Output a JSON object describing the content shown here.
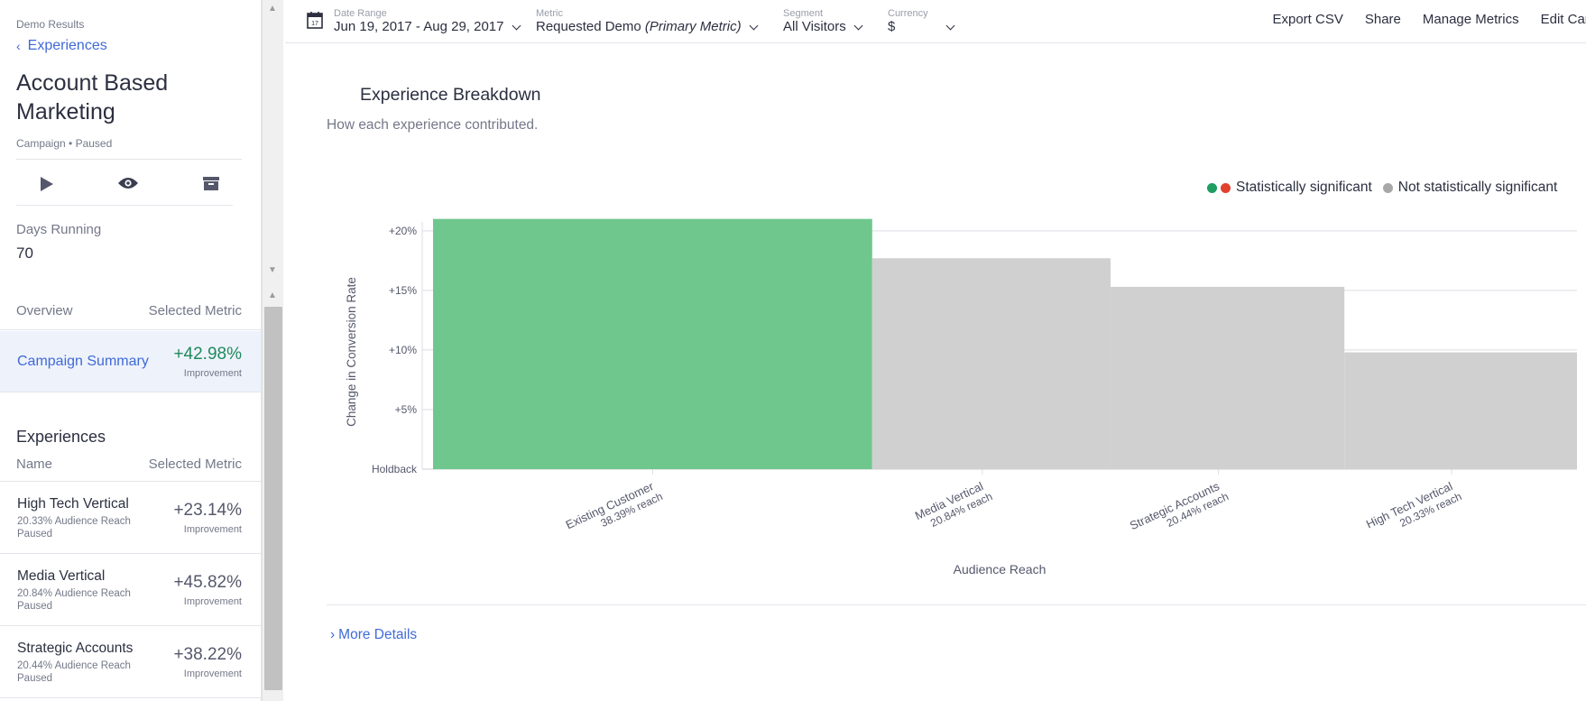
{
  "sidebar": {
    "breadcrumb_small": "Demo Results",
    "breadcrumb_link": "Experiences",
    "title": "Account Based Marketing",
    "meta": "Campaign  •  Paused",
    "days_running_label": "Days Running",
    "days_running_value": "70",
    "overview_label": "Overview",
    "selected_metric_label": "Selected Metric",
    "summary": {
      "label": "Campaign Summary",
      "value": "+42.98%",
      "sub": "Improvement"
    },
    "experiences_title": "Experiences",
    "experiences_name_header": "Name",
    "experiences_metric_header": "Selected Metric",
    "experiences": [
      {
        "name": "High Tech Vertical",
        "reach": "20.33% Audience Reach",
        "status": "Paused",
        "value": "+23.14%",
        "sub": "Improvement"
      },
      {
        "name": "Media Vertical",
        "reach": "20.84% Audience Reach",
        "status": "Paused",
        "value": "+45.82%",
        "sub": "Improvement"
      },
      {
        "name": "Strategic Accounts",
        "reach": "20.44% Audience Reach",
        "status": "Paused",
        "value": "+38.22%",
        "sub": "Improvement"
      }
    ]
  },
  "topbar": {
    "date_label": "Date Range",
    "date_value": "Jun 19, 2017 - Aug 29, 2017",
    "metric_label": "Metric",
    "metric_value": "Requested Demo",
    "metric_suffix": "(Primary Metric)",
    "segment_label": "Segment",
    "segment_value": "All Visitors",
    "currency_label": "Currency",
    "currency_value": "$",
    "calendar_day": "17",
    "actions": {
      "export": "Export CSV",
      "share": "Share",
      "manage": "Manage Metrics",
      "edit": "Edit Campaign"
    }
  },
  "main": {
    "title": "Experience Breakdown",
    "subtitle": "How each experience contributed.",
    "legend_sig": "Statistically significant",
    "legend_not_sig": "Not statistically significant",
    "more_details": "More Details"
  },
  "colors": {
    "significant": "#6fc78d",
    "not_significant": "#d0d0d0",
    "legend_green": "#1e9e62",
    "legend_red": "#e2402f",
    "legend_gray": "#a8a8a8",
    "grid": "#dcdde2",
    "axis_text": "#55586b"
  },
  "chart_data": {
    "type": "bar",
    "title": "Experience Breakdown",
    "xlabel": "Audience Reach",
    "ylabel": "Change in Conversion Rate",
    "ylim": [
      0,
      20
    ],
    "y_ticks": [
      {
        "value": 0,
        "label": "Holdback"
      },
      {
        "value": 5,
        "label": "+5%"
      },
      {
        "value": 10,
        "label": "+10%"
      },
      {
        "value": 15,
        "label": "+15%"
      },
      {
        "value": 20,
        "label": "+20%"
      }
    ],
    "bars": [
      {
        "name": "Existing Customer",
        "reach_label": "38.39% reach",
        "reach": 38.39,
        "value": 21,
        "significant": true
      },
      {
        "name": "Media Vertical",
        "reach_label": "20.84% reach",
        "reach": 20.84,
        "value": 17.7,
        "significant": false
      },
      {
        "name": "Strategic Accounts",
        "reach_label": "20.44% reach",
        "reach": 20.44,
        "value": 15.3,
        "significant": false
      },
      {
        "name": "High Tech Vertical",
        "reach_label": "20.33% reach",
        "reach": 20.33,
        "value": 9.8,
        "significant": false
      }
    ]
  }
}
